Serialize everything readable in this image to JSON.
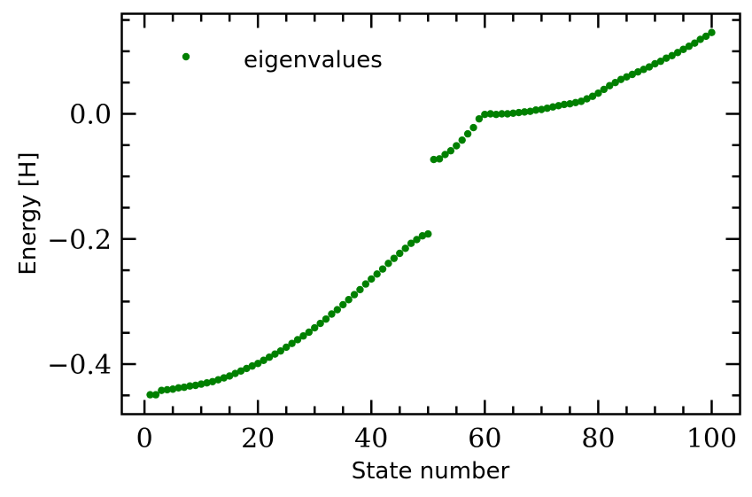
{
  "chart_data": {
    "type": "scatter",
    "xlabel": "State number",
    "ylabel": "Energy [H]",
    "xlim": [
      -4,
      105
    ],
    "ylim": [
      -0.48,
      0.16
    ],
    "x_ticks": [
      0,
      20,
      40,
      60,
      80,
      100
    ],
    "x_tick_labels": [
      "0",
      "20",
      "40",
      "60",
      "80",
      "100"
    ],
    "y_ticks": [
      -0.4,
      -0.2,
      0.0
    ],
    "y_tick_labels": [
      "−0.4",
      "−0.2",
      "0.0"
    ],
    "grid": false,
    "legend_position": "top-left",
    "series": [
      {
        "name": "eigenvalues",
        "color": "#008000",
        "marker": "circle",
        "x": [
          1,
          2,
          3,
          4,
          5,
          6,
          7,
          8,
          9,
          10,
          11,
          12,
          13,
          14,
          15,
          16,
          17,
          18,
          19,
          20,
          21,
          22,
          23,
          24,
          25,
          26,
          27,
          28,
          29,
          30,
          31,
          32,
          33,
          34,
          35,
          36,
          37,
          38,
          39,
          40,
          41,
          42,
          43,
          44,
          45,
          46,
          47,
          48,
          49,
          50,
          51,
          52,
          53,
          54,
          55,
          56,
          57,
          58,
          59,
          60,
          61,
          62,
          63,
          64,
          65,
          66,
          67,
          68,
          69,
          70,
          71,
          72,
          73,
          74,
          75,
          76,
          77,
          78,
          79,
          80,
          81,
          82,
          83,
          84,
          85,
          86,
          87,
          88,
          89,
          90,
          91,
          92,
          93,
          94,
          95,
          96,
          97,
          98,
          99,
          100
        ],
        "y": [
          -0.449,
          -0.449,
          -0.442,
          -0.441,
          -0.44,
          -0.438,
          -0.437,
          -0.435,
          -0.434,
          -0.432,
          -0.43,
          -0.428,
          -0.425,
          -0.422,
          -0.419,
          -0.415,
          -0.411,
          -0.407,
          -0.403,
          -0.399,
          -0.394,
          -0.389,
          -0.384,
          -0.379,
          -0.373,
          -0.367,
          -0.361,
          -0.355,
          -0.349,
          -0.342,
          -0.335,
          -0.328,
          -0.32,
          -0.313,
          -0.305,
          -0.297,
          -0.289,
          -0.281,
          -0.272,
          -0.264,
          -0.256,
          -0.248,
          -0.239,
          -0.231,
          -0.223,
          -0.215,
          -0.207,
          -0.201,
          -0.195,
          -0.192,
          -0.073,
          -0.072,
          -0.065,
          -0.059,
          -0.051,
          -0.042,
          -0.032,
          -0.022,
          -0.008,
          -0.001,
          0.0,
          -0.001,
          0.0,
          0.0,
          0.001,
          0.002,
          0.003,
          0.004,
          0.006,
          0.007,
          0.009,
          0.011,
          0.013,
          0.015,
          0.016,
          0.018,
          0.02,
          0.024,
          0.028,
          0.033,
          0.039,
          0.045,
          0.05,
          0.055,
          0.059,
          0.063,
          0.067,
          0.071,
          0.075,
          0.08,
          0.084,
          0.089,
          0.093,
          0.098,
          0.103,
          0.108,
          0.113,
          0.119,
          0.124,
          0.13
        ]
      }
    ]
  }
}
